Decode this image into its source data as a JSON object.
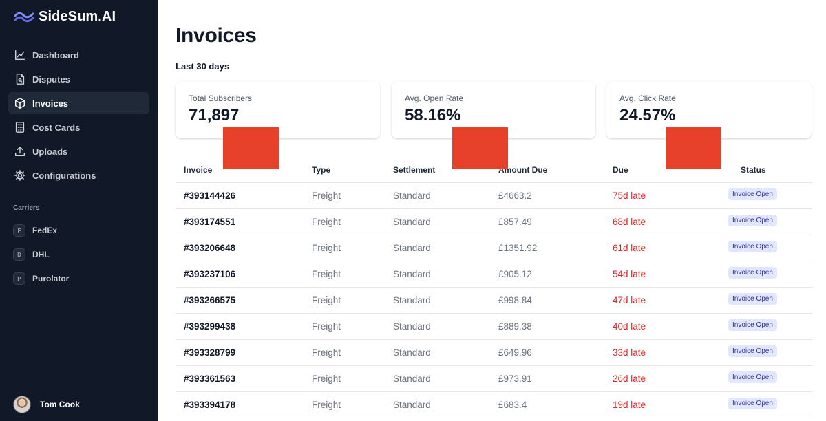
{
  "brand": {
    "name": "SideSum.AI"
  },
  "sidebar": {
    "nav": [
      {
        "label": "Dashboard",
        "icon": "chart-icon",
        "active": false
      },
      {
        "label": "Disputes",
        "icon": "document-search-icon",
        "active": false
      },
      {
        "label": "Invoices",
        "icon": "cube-icon",
        "active": true
      },
      {
        "label": "Cost Cards",
        "icon": "calculator-icon",
        "active": false
      },
      {
        "label": "Uploads",
        "icon": "upload-icon",
        "active": false
      },
      {
        "label": "Configurations",
        "icon": "gear-icon",
        "active": false
      }
    ],
    "carriers_label": "Carriers",
    "carriers": [
      {
        "initial": "F",
        "label": "FedEx"
      },
      {
        "initial": "D",
        "label": "DHL"
      },
      {
        "initial": "P",
        "label": "Purolator"
      }
    ],
    "user": {
      "name": "Tom Cook"
    }
  },
  "main": {
    "title": "Invoices",
    "period": "Last 30 days",
    "stats": [
      {
        "label": "Total Subscribers",
        "value": "71,897"
      },
      {
        "label": "Avg. Open Rate",
        "value": "58.16%"
      },
      {
        "label": "Avg. Click Rate",
        "value": "24.57%"
      }
    ],
    "table": {
      "headers": [
        "Invoice",
        "Type",
        "Settlement",
        "Amount Due",
        "Due",
        "Status"
      ],
      "rows": [
        [
          "#393144426",
          "Freight",
          "Standard",
          "£4663.2",
          "75d late",
          "Invoice Open"
        ],
        [
          "#393174551",
          "Freight",
          "Standard",
          "£857.49",
          "68d late",
          "Invoice Open"
        ],
        [
          "#393206648",
          "Freight",
          "Standard",
          "£1351.92",
          "61d late",
          "Invoice Open"
        ],
        [
          "#393237106",
          "Freight",
          "Standard",
          "£905.12",
          "54d late",
          "Invoice Open"
        ],
        [
          "#393266575",
          "Freight",
          "Standard",
          "£998.84",
          "47d late",
          "Invoice Open"
        ],
        [
          "#393299438",
          "Freight",
          "Standard",
          "£889.38",
          "40d late",
          "Invoice Open"
        ],
        [
          "#393328799",
          "Freight",
          "Standard",
          "£649.96",
          "33d late",
          "Invoice Open"
        ],
        [
          "#393361563",
          "Freight",
          "Standard",
          "£973.91",
          "26d late",
          "Invoice Open"
        ],
        [
          "#393394178",
          "Freight",
          "Standard",
          "£683.4",
          "19d late",
          "Invoice Open"
        ]
      ]
    }
  },
  "colors": {
    "sidebar_bg": "#111827",
    "late_text": "#dc2626",
    "badge_bg": "#e0e7ff",
    "badge_text": "#3730a3",
    "redaction": "#e8412b"
  }
}
